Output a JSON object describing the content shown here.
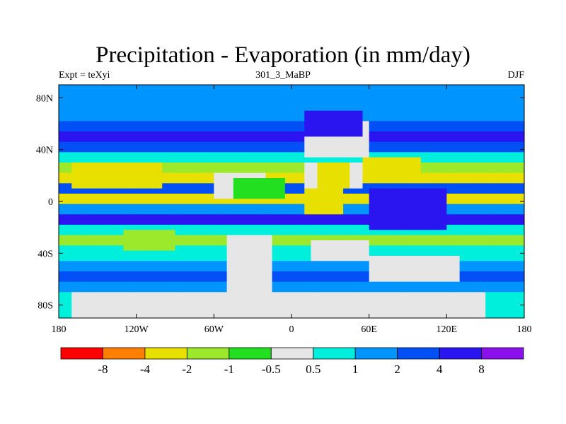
{
  "title": "Precipitation - Evaporation (in mm/day)",
  "subtitle_left": "Expt = teXyi",
  "subtitle_center": "301_3_MaBP",
  "subtitle_right": "DJF",
  "chart_data": {
    "type": "heatmap",
    "title": "Precipitation - Evaporation (in mm/day)",
    "x_axis": {
      "range": [
        -180,
        180
      ],
      "ticks": [
        -180,
        -120,
        -60,
        0,
        60,
        120,
        180
      ],
      "tick_labels": [
        "180",
        "120W",
        "60W",
        "0",
        "60E",
        "120E",
        "180"
      ]
    },
    "y_axis": {
      "range": [
        -90,
        90
      ],
      "ticks": [
        80,
        40,
        0,
        -40,
        -80
      ],
      "tick_labels": [
        "80N",
        "40N",
        "0",
        "40S",
        "80S"
      ]
    },
    "colorbar": {
      "colors": [
        "#ff0000",
        "#ff7f00",
        "#e8e000",
        "#9ce82a",
        "#22e01f",
        "#e6e6e6",
        "#00efdc",
        "#0094ff",
        "#0050f5",
        "#2a14f0",
        "#8a10ee"
      ],
      "labels": [
        "-8",
        "-4",
        "-2",
        "-1",
        "-0.5",
        "0.5",
        "1",
        "2",
        "4",
        "8"
      ]
    },
    "zonal_bands": [
      {
        "lat_from": 90,
        "lat_to": 80,
        "value": 1
      },
      {
        "lat_from": 80,
        "lat_to": 60,
        "value": 1.5
      },
      {
        "lat_from": 60,
        "lat_to": 52,
        "value": 3
      },
      {
        "lat_from": 52,
        "lat_to": 44,
        "value": 5
      },
      {
        "lat_from": 44,
        "lat_to": 36,
        "value": 2
      },
      {
        "lat_from": 36,
        "lat_to": 28,
        "value": 0.8
      },
      {
        "lat_from": 28,
        "lat_to": 20,
        "value": -1.5
      },
      {
        "lat_from": 20,
        "lat_to": 12,
        "value": -3
      },
      {
        "lat_from": 12,
        "lat_to": 4,
        "value": 2
      },
      {
        "lat_from": 4,
        "lat_to": -4,
        "value": -3
      },
      {
        "lat_from": -4,
        "lat_to": -10,
        "value": 1.5
      },
      {
        "lat_from": -10,
        "lat_to": -18,
        "value": 6
      },
      {
        "lat_from": -18,
        "lat_to": -26,
        "value": 0.8
      },
      {
        "lat_from": -26,
        "lat_to": -36,
        "value": -1.5
      },
      {
        "lat_from": -36,
        "lat_to": -46,
        "value": 0.8
      },
      {
        "lat_from": -46,
        "lat_to": -54,
        "value": 1.5
      },
      {
        "lat_from": -54,
        "lat_to": -62,
        "value": 3
      },
      {
        "lat_from": -62,
        "lat_to": -72,
        "value": 1.5
      },
      {
        "lat_from": -72,
        "lat_to": -90,
        "value": 0.8
      }
    ],
    "regions": [
      {
        "name": "north-pacific-subtropics",
        "lon": [
          -170,
          -100
        ],
        "lat": [
          28,
          12
        ],
        "value": -3
      },
      {
        "name": "south-pacific-subtropics",
        "lon": [
          -130,
          -90
        ],
        "lat": [
          -22,
          -38
        ],
        "value": -1.5
      },
      {
        "name": "south-america-north",
        "lon": [
          -60,
          -20
        ],
        "lat": [
          22,
          2
        ],
        "value": 0.3
      },
      {
        "name": "south-america-center",
        "lon": [
          -45,
          -5
        ],
        "lat": [
          18,
          4
        ],
        "value": -0.7
      },
      {
        "name": "south-america-south",
        "lon": [
          -50,
          -15
        ],
        "lat": [
          -28,
          -70
        ],
        "value": 0.3
      },
      {
        "name": "africa-north",
        "lon": [
          10,
          55
        ],
        "lat": [
          30,
          12
        ],
        "value": 0.3
      },
      {
        "name": "arabia-dry",
        "lon": [
          20,
          45
        ],
        "lat": [
          30,
          12
        ],
        "value": -3
      },
      {
        "name": "east-africa-wet",
        "lon": [
          10,
          40
        ],
        "lat": [
          10,
          -8
        ],
        "value": -3
      },
      {
        "name": "eurasia-north",
        "lon": [
          10,
          60
        ],
        "lat": [
          60,
          36
        ],
        "value": 0.3
      },
      {
        "name": "siberia-wet",
        "lon": [
          10,
          55
        ],
        "lat": [
          68,
          52
        ],
        "value": 5
      },
      {
        "name": "india-asia",
        "lon": [
          55,
          100
        ],
        "lat": [
          32,
          22
        ],
        "value": -3
      },
      {
        "name": "tropical-west-pacific",
        "lon": [
          60,
          120
        ],
        "lat": [
          8,
          -22
        ],
        "value": 6
      },
      {
        "name": "antarctica-dry",
        "lon": [
          15,
          60
        ],
        "lat": [
          -30,
          -46
        ],
        "value": 0.3
      },
      {
        "name": "australia",
        "lon": [
          60,
          130
        ],
        "lat": [
          -44,
          -62
        ],
        "value": 0.3
      },
      {
        "name": "antarctica-south",
        "lon": [
          -170,
          150
        ],
        "lat": [
          -72,
          -90
        ],
        "value": 0.3
      }
    ]
  }
}
